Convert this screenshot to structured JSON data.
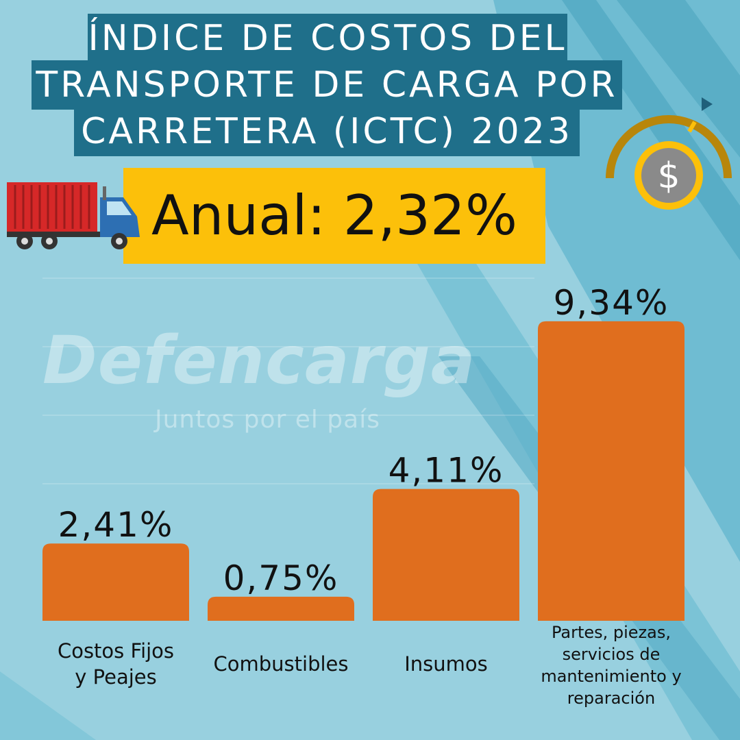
{
  "header": {
    "title_lines": [
      "ÍNDICE DE COSTOS DEL",
      "TRANSPORTE DE CARGA POR",
      "CARRETERA (ICTC) 2023"
    ],
    "annual": "Anual: 2,32%"
  },
  "watermark": {
    "brand": "Defencarga",
    "slogan": "Juntos por el país"
  },
  "icons": {
    "truck": "truck-icon",
    "gauge": "dollar-gauge-icon"
  },
  "colors": {
    "background": "#98d0df",
    "title_band": "#1f6f8a",
    "annual_band": "#fcc00a",
    "bar": "#e06e1e",
    "text": "#111111"
  },
  "chart_data": {
    "type": "bar",
    "categories": [
      [
        "Costos Fijos",
        "y Peajes"
      ],
      [
        "Combustibles"
      ],
      [
        "Insumos"
      ],
      [
        "Partes, piezas,",
        "servicios de",
        "mantenimiento y",
        "reparación"
      ]
    ],
    "values": [
      2.41,
      0.75,
      4.11,
      9.34
    ],
    "value_labels": [
      "2,41%",
      "0,75%",
      "4,11%",
      "9,34%"
    ],
    "grid": true
  }
}
